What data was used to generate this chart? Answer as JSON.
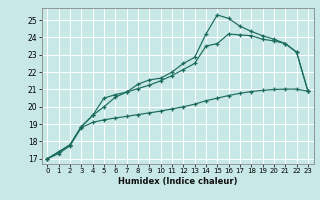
{
  "title": "",
  "xlabel": "Humidex (Indice chaleur)",
  "bg_color": "#c8e8e8",
  "grid_color": "#ffffff",
  "line_color": "#1a6b5a",
  "xlim": [
    -0.5,
    23.5
  ],
  "ylim": [
    16.7,
    25.7
  ],
  "xticks": [
    0,
    1,
    2,
    3,
    4,
    5,
    6,
    7,
    8,
    9,
    10,
    11,
    12,
    13,
    14,
    15,
    16,
    17,
    18,
    19,
    20,
    21,
    22,
    23
  ],
  "yticks": [
    17,
    18,
    19,
    20,
    21,
    22,
    23,
    24,
    25
  ],
  "line1_x": [
    0,
    1,
    2,
    3,
    4,
    5,
    6,
    7,
    8,
    9,
    10,
    11,
    12,
    13,
    14,
    15,
    16,
    17,
    18,
    19,
    20,
    21,
    22,
    23
  ],
  "line1_y": [
    17.0,
    17.4,
    17.8,
    18.85,
    19.5,
    20.5,
    20.7,
    20.85,
    21.05,
    21.25,
    21.5,
    21.8,
    22.15,
    22.5,
    23.5,
    23.65,
    24.2,
    24.15,
    24.1,
    23.9,
    23.8,
    23.65,
    23.15,
    20.9
  ],
  "line2_x": [
    0,
    1,
    2,
    3,
    4,
    5,
    6,
    7,
    8,
    9,
    10,
    11,
    12,
    13,
    14,
    15,
    16,
    17,
    18,
    19,
    20,
    21,
    22,
    23
  ],
  "line2_y": [
    17.0,
    17.4,
    17.8,
    18.85,
    19.5,
    20.0,
    20.55,
    20.85,
    21.3,
    21.55,
    21.65,
    22.0,
    22.5,
    22.85,
    24.2,
    25.3,
    25.1,
    24.65,
    24.35,
    24.1,
    23.9,
    23.65,
    23.15,
    20.9
  ],
  "line3_x": [
    0,
    1,
    2,
    3,
    4,
    5,
    6,
    7,
    8,
    9,
    10,
    11,
    12,
    13,
    14,
    15,
    16,
    17,
    18,
    19,
    20,
    21,
    22,
    23
  ],
  "line3_y": [
    17.0,
    17.3,
    17.75,
    18.8,
    19.1,
    19.25,
    19.35,
    19.45,
    19.55,
    19.65,
    19.75,
    19.88,
    20.0,
    20.15,
    20.35,
    20.5,
    20.65,
    20.78,
    20.88,
    20.95,
    21.0,
    21.02,
    21.02,
    20.9
  ]
}
